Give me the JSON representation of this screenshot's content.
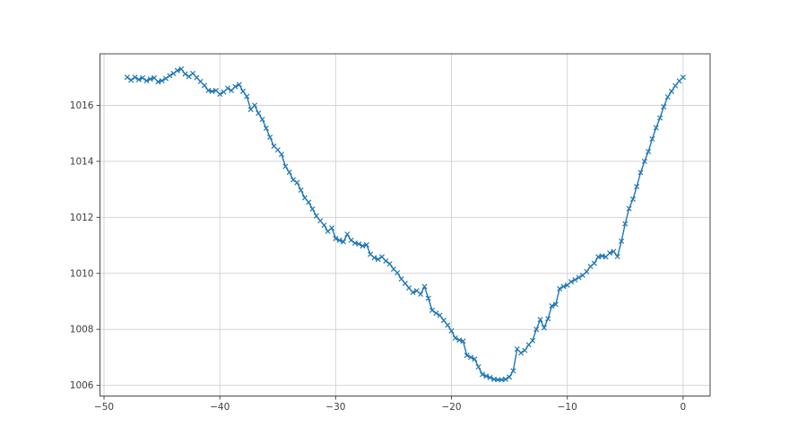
{
  "figure": {
    "background": "#ffffff"
  },
  "chart_data": {
    "type": "line",
    "title": "",
    "xlabel": "",
    "ylabel": "",
    "grid": true,
    "legend": "none",
    "xlim": [
      -50.35,
      2.33
    ],
    "ylim": [
      1005.62,
      1017.84
    ],
    "xticks": {
      "values": [
        -50,
        -40,
        -30,
        -20,
        -10,
        0
      ],
      "labels": [
        "−50",
        "−40",
        "−30",
        "−20",
        "−10",
        "0"
      ]
    },
    "yticks": {
      "values": [
        1006,
        1008,
        1010,
        1012,
        1014,
        1016
      ],
      "labels": [
        "1006",
        "1008",
        "1010",
        "1012",
        "1014",
        "1016"
      ]
    },
    "colors": {
      "line": "#1f77b4",
      "grid": "#d4d4d4",
      "spine": "#4a4a4a",
      "tick": "#4a4a4a",
      "tick_label": "#3d3d3d",
      "background": "#ffffff"
    },
    "marker": "x",
    "series": [
      {
        "name": "series-0",
        "x": [
          -48,
          -47.67,
          -47.33,
          -47,
          -46.67,
          -46.33,
          -46,
          -45.67,
          -45.33,
          -45,
          -44.67,
          -44.33,
          -44,
          -43.67,
          -43.33,
          -43,
          -42.67,
          -42.33,
          -42,
          -41.67,
          -41.33,
          -41,
          -40.67,
          -40.33,
          -40,
          -39.67,
          -39.33,
          -39,
          -38.67,
          -38.33,
          -38,
          -37.67,
          -37.33,
          -37,
          -36.67,
          -36.33,
          -36,
          -35.67,
          -35.33,
          -35,
          -34.67,
          -34.33,
          -34,
          -33.67,
          -33.33,
          -33,
          -32.67,
          -32.33,
          -32,
          -31.67,
          -31.33,
          -31,
          -30.67,
          -30.33,
          -30,
          -29.67,
          -29.33,
          -29,
          -28.67,
          -28.33,
          -28,
          -27.67,
          -27.33,
          -27,
          -26.67,
          -26.33,
          -26,
          -25.67,
          -25.33,
          -25,
          -24.67,
          -24.33,
          -24,
          -23.67,
          -23.33,
          -23,
          -22.67,
          -22.33,
          -22,
          -21.67,
          -21.33,
          -21,
          -20.67,
          -20.33,
          -20,
          -19.67,
          -19.33,
          -19,
          -18.67,
          -18.33,
          -18,
          -17.67,
          -17.33,
          -17,
          -16.67,
          -16.33,
          -16,
          -15.67,
          -15.33,
          -15,
          -14.67,
          -14.33,
          -14,
          -13.67,
          -13.33,
          -13,
          -12.67,
          -12.33,
          -12,
          -11.67,
          -11.33,
          -11,
          -10.67,
          -10.33,
          -10,
          -9.67,
          -9.33,
          -9,
          -8.67,
          -8.33,
          -8,
          -7.67,
          -7.33,
          -7,
          -6.67,
          -6.33,
          -6,
          -5.67,
          -5.33,
          -5,
          -4.67,
          -4.33,
          -4,
          -3.67,
          -3.33,
          -3,
          -2.67,
          -2.33,
          -2,
          -1.67,
          -1.33,
          -1,
          -0.67,
          -0.33,
          0
        ],
        "y": [
          1017.0,
          1016.9,
          1017.0,
          1016.92,
          1016.98,
          1016.88,
          1016.94,
          1016.98,
          1016.84,
          1016.88,
          1016.96,
          1017.06,
          1017.14,
          1017.24,
          1017.3,
          1017.12,
          1017.03,
          1017.14,
          1016.99,
          1016.85,
          1016.71,
          1016.53,
          1016.5,
          1016.53,
          1016.4,
          1016.48,
          1016.61,
          1016.53,
          1016.67,
          1016.74,
          1016.5,
          1016.32,
          1015.85,
          1016.0,
          1015.72,
          1015.5,
          1015.18,
          1014.86,
          1014.54,
          1014.41,
          1014.25,
          1013.82,
          1013.61,
          1013.34,
          1013.24,
          1012.97,
          1012.7,
          1012.54,
          1012.3,
          1012.05,
          1011.88,
          1011.72,
          1011.5,
          1011.62,
          1011.24,
          1011.18,
          1011.13,
          1011.4,
          1011.18,
          1011.08,
          1011.05,
          1010.98,
          1011.02,
          1010.68,
          1010.56,
          1010.5,
          1010.59,
          1010.44,
          1010.34,
          1010.15,
          1010.02,
          1009.8,
          1009.64,
          1009.48,
          1009.32,
          1009.38,
          1009.26,
          1009.53,
          1009.11,
          1008.68,
          1008.58,
          1008.5,
          1008.32,
          1008.15,
          1007.95,
          1007.69,
          1007.62,
          1007.58,
          1007.07,
          1007.0,
          1006.94,
          1006.66,
          1006.39,
          1006.33,
          1006.28,
          1006.22,
          1006.2,
          1006.2,
          1006.22,
          1006.3,
          1006.52,
          1007.3,
          1007.16,
          1007.25,
          1007.45,
          1007.6,
          1008.0,
          1008.35,
          1008.06,
          1008.38,
          1008.84,
          1008.89,
          1009.45,
          1009.53,
          1009.58,
          1009.7,
          1009.77,
          1009.85,
          1009.93,
          1010.06,
          1010.25,
          1010.36,
          1010.59,
          1010.62,
          1010.59,
          1010.73,
          1010.78,
          1010.6,
          1011.15,
          1011.77,
          1012.31,
          1012.65,
          1013.1,
          1013.6,
          1014.0,
          1014.35,
          1014.8,
          1015.2,
          1015.55,
          1015.95,
          1016.3,
          1016.5,
          1016.7,
          1016.87,
          1017.0
        ]
      }
    ]
  }
}
